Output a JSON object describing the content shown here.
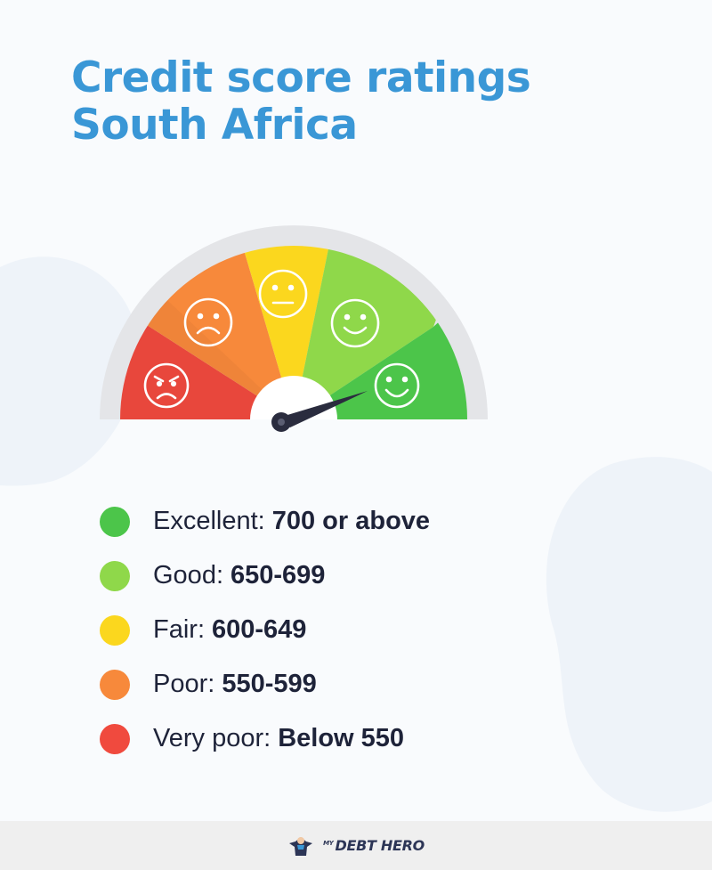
{
  "header": {
    "title_line1": "Credit score ratings",
    "title_line2": "South Africa"
  },
  "gauge": {
    "segments": [
      {
        "name": "very-poor",
        "color": "#f04a3e",
        "face": "angry-face-icon"
      },
      {
        "name": "poor",
        "color": "#f7893b",
        "face": "sad-face-icon"
      },
      {
        "name": "fair",
        "color": "#fbd71e",
        "face": "neutral-face-icon"
      },
      {
        "name": "good",
        "color": "#8fd84a",
        "face": "smile-face-icon"
      },
      {
        "name": "excellent",
        "color": "#4cc54a",
        "face": "happy-face-icon"
      }
    ],
    "needle_rating": "excellent"
  },
  "legend": [
    {
      "label": "Excellent:",
      "value": "700 or above",
      "color": "#4cc54a"
    },
    {
      "label": "Good:",
      "value": "650-699",
      "color": "#8fd84a"
    },
    {
      "label": "Fair:",
      "value": "600-649",
      "color": "#fbd71e"
    },
    {
      "label": "Poor:",
      "value": "550-599",
      "color": "#f7893b"
    },
    {
      "label": "Very poor:",
      "value": "Below 550",
      "color": "#f04a3e"
    }
  ],
  "footer": {
    "brand_prefix": "MY",
    "brand_name": "DEBT HERO",
    "logo_icon": "hero-mascot-icon"
  }
}
